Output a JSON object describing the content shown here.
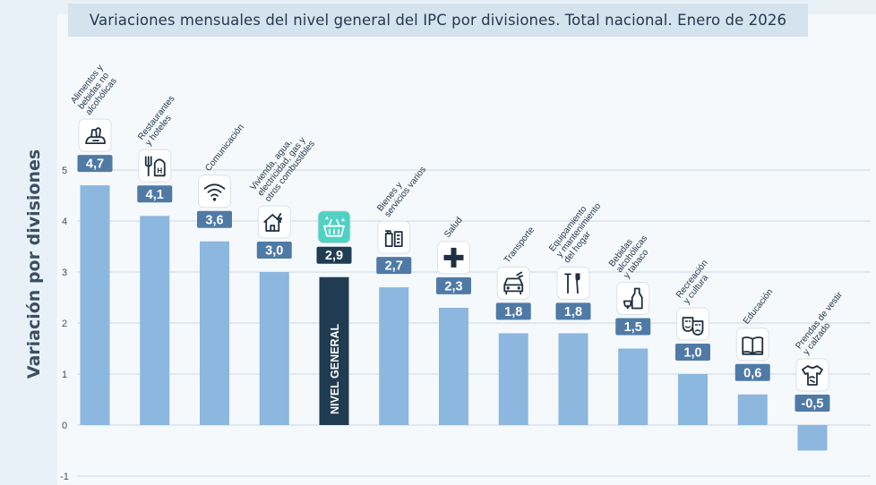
{
  "chart_data": {
    "type": "bar",
    "title": "Variaciones mensuales del nivel general del IPC por divisiones. Total nacional. Enero de 2026",
    "xlabel": "",
    "ylabel": "Variación por divisiones",
    "ylim": [
      -1,
      5.5
    ],
    "yticks": [
      5,
      4,
      3,
      2,
      1,
      0,
      -1
    ],
    "grid": true,
    "legend": "none",
    "categories": [
      "Alimentos y bebidas no alcohólicas",
      "Restaurantes y hoteles",
      "Comunicación",
      "Vivienda, agua, electricidad, gas y otros combustibles",
      "NIVEL GENERAL",
      "Bienes y servicios varios",
      "Salud",
      "Transporte",
      "Equipamiento y mantenimiento del hogar",
      "Bebidas alcohólicas y tabaco",
      "Recreación y cultura",
      "Educación",
      "Prendas de vestir y calzado"
    ],
    "values": [
      4.7,
      4.1,
      3.6,
      3.0,
      2.9,
      2.7,
      2.3,
      1.8,
      1.8,
      1.5,
      1.0,
      0.6,
      -0.5
    ],
    "value_labels": [
      "4,7",
      "4,1",
      "3,6",
      "3,0",
      "2,9",
      "2,7",
      "2,3",
      "1,8",
      "1,8",
      "1,5",
      "1,0",
      "0,6",
      "-0,5"
    ],
    "category_labels": [
      [
        "Alimentos y",
        "bebidas no",
        "alcohólicas"
      ],
      [
        "Restaurantes",
        "y hoteles"
      ],
      [
        "Comunicación"
      ],
      [
        "Vivienda, agua,",
        "electricidad, gas y",
        "otros combustibles"
      ],
      [],
      [
        "Bienes y",
        "servicios varios"
      ],
      [
        "Salud"
      ],
      [
        "Transporte"
      ],
      [
        "Equipamiento",
        "y mantenimiento",
        "del hogar"
      ],
      [
        "Bebidas",
        "alcohólicas",
        "y tabaco"
      ],
      [
        "Recreación",
        "y cultura"
      ],
      [
        "Educación"
      ],
      [
        "Prendas de vestir",
        "y calzado"
      ]
    ],
    "highlight_label": "NIVEL GENERAL",
    "icons": [
      "grocery-icon",
      "restaurant-icon",
      "wifi-icon",
      "house-utilities-icon",
      "basket-icon",
      "toiletries-icon",
      "health-cross-icon",
      "car-icon",
      "tools-icon",
      "bottle-glass-icon",
      "theater-masks-icon",
      "book-icon",
      "tshirt-icon"
    ],
    "colors": {
      "bar": "#8cb7de",
      "highlight_bar": "#203b52",
      "label_box": "#4f7aa6",
      "highlight_icon_bg": "#4fd2c2",
      "text": "#24384e"
    }
  }
}
